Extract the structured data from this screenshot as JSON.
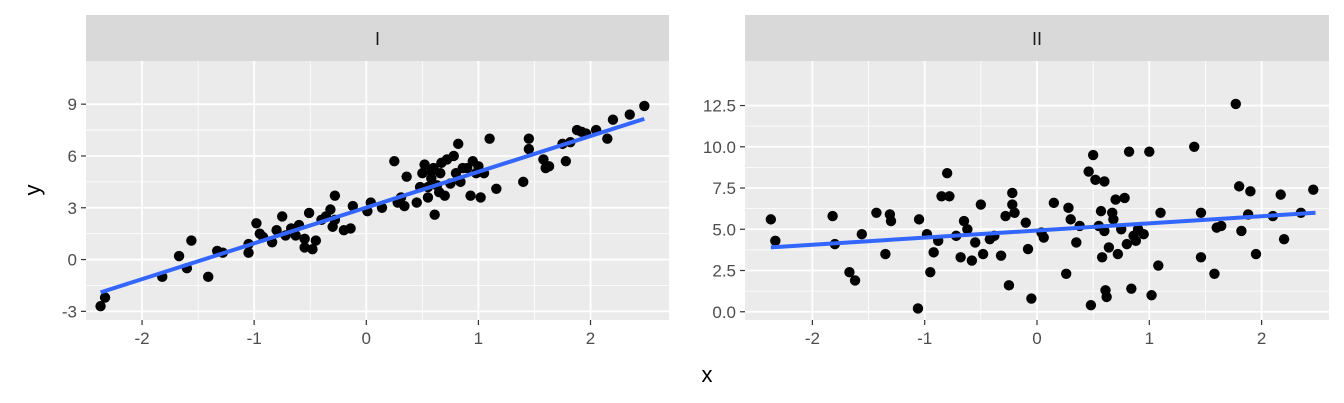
{
  "chart_data": {
    "type": "scatter",
    "xlabel": "x",
    "ylabel": "y",
    "colors": {
      "points": "#000000",
      "fit_line": "#3366ff",
      "panel_bg": "#ebebeb",
      "strip_bg": "#d9d9d9",
      "grid": "#ffffff"
    },
    "panels": [
      {
        "strip": "I",
        "xlim": [
          -2.5,
          2.7
        ],
        "ylim": [
          -3.5,
          11.5
        ],
        "x_ticks": [
          -2,
          -1,
          0,
          1,
          2
        ],
        "x_tick_labels": [
          "-2",
          "-1",
          "0",
          "1",
          "2"
        ],
        "y_ticks": [
          -3,
          0,
          3,
          6,
          9
        ],
        "y_tick_labels": [
          "-3",
          "0",
          "3",
          "6",
          "9"
        ],
        "fit": {
          "x": [
            -2.37,
            2.48
          ],
          "y": [
            -1.9,
            8.15
          ]
        },
        "points": [
          {
            "x": -2.37,
            "y": -2.7
          },
          {
            "x": -2.33,
            "y": -2.2
          },
          {
            "x": -1.82,
            "y": -1.0
          },
          {
            "x": -1.67,
            "y": 0.2
          },
          {
            "x": -1.6,
            "y": -0.5
          },
          {
            "x": -1.56,
            "y": 1.1
          },
          {
            "x": -1.41,
            "y": -1.0
          },
          {
            "x": -1.33,
            "y": 0.5
          },
          {
            "x": -1.28,
            "y": 0.4
          },
          {
            "x": -1.05,
            "y": 0.9
          },
          {
            "x": -1.05,
            "y": 0.4
          },
          {
            "x": -0.98,
            "y": 2.1
          },
          {
            "x": -0.95,
            "y": 1.5
          },
          {
            "x": -0.92,
            "y": 1.3
          },
          {
            "x": -0.84,
            "y": 1.0
          },
          {
            "x": -0.8,
            "y": 1.7
          },
          {
            "x": -0.75,
            "y": 2.5
          },
          {
            "x": -0.72,
            "y": 1.4
          },
          {
            "x": -0.67,
            "y": 1.8
          },
          {
            "x": -0.63,
            "y": 1.4
          },
          {
            "x": -0.6,
            "y": 2.0
          },
          {
            "x": -0.55,
            "y": 1.2
          },
          {
            "x": -0.55,
            "y": 0.7
          },
          {
            "x": -0.51,
            "y": 2.7
          },
          {
            "x": -0.48,
            "y": 0.6
          },
          {
            "x": -0.45,
            "y": 1.1
          },
          {
            "x": -0.4,
            "y": 2.3
          },
          {
            "x": -0.36,
            "y": 2.5
          },
          {
            "x": -0.32,
            "y": 2.9
          },
          {
            "x": -0.3,
            "y": 1.9
          },
          {
            "x": -0.28,
            "y": 2.3
          },
          {
            "x": -0.28,
            "y": 3.7
          },
          {
            "x": -0.2,
            "y": 1.7
          },
          {
            "x": -0.14,
            "y": 1.8
          },
          {
            "x": -0.12,
            "y": 3.1
          },
          {
            "x": 0.01,
            "y": 2.8
          },
          {
            "x": 0.04,
            "y": 3.3
          },
          {
            "x": 0.14,
            "y": 3.0
          },
          {
            "x": 0.25,
            "y": 5.7
          },
          {
            "x": 0.28,
            "y": 3.3
          },
          {
            "x": 0.31,
            "y": 3.6
          },
          {
            "x": 0.34,
            "y": 3.1
          },
          {
            "x": 0.36,
            "y": 4.8
          },
          {
            "x": 0.45,
            "y": 3.3
          },
          {
            "x": 0.48,
            "y": 4.2
          },
          {
            "x": 0.5,
            "y": 5.0
          },
          {
            "x": 0.52,
            "y": 5.5
          },
          {
            "x": 0.55,
            "y": 3.6
          },
          {
            "x": 0.55,
            "y": 4.2
          },
          {
            "x": 0.58,
            "y": 5.1
          },
          {
            "x": 0.58,
            "y": 4.7
          },
          {
            "x": 0.6,
            "y": 5.3
          },
          {
            "x": 0.61,
            "y": 2.6
          },
          {
            "x": 0.63,
            "y": 4.3
          },
          {
            "x": 0.65,
            "y": 3.9
          },
          {
            "x": 0.66,
            "y": 5.0
          },
          {
            "x": 0.67,
            "y": 5.6
          },
          {
            "x": 0.7,
            "y": 3.7
          },
          {
            "x": 0.72,
            "y": 5.8
          },
          {
            "x": 0.75,
            "y": 4.4
          },
          {
            "x": 0.78,
            "y": 6.0
          },
          {
            "x": 0.8,
            "y": 5.0
          },
          {
            "x": 0.82,
            "y": 6.7
          },
          {
            "x": 0.84,
            "y": 4.5
          },
          {
            "x": 0.86,
            "y": 5.3
          },
          {
            "x": 0.9,
            "y": 5.3
          },
          {
            "x": 0.93,
            "y": 3.7
          },
          {
            "x": 0.95,
            "y": 5.7
          },
          {
            "x": 0.98,
            "y": 5.0
          },
          {
            "x": 1.0,
            "y": 5.4
          },
          {
            "x": 1.02,
            "y": 3.6
          },
          {
            "x": 1.05,
            "y": 5.0
          },
          {
            "x": 1.1,
            "y": 7.0
          },
          {
            "x": 1.16,
            "y": 4.1
          },
          {
            "x": 1.4,
            "y": 4.5
          },
          {
            "x": 1.45,
            "y": 6.4
          },
          {
            "x": 1.45,
            "y": 7.0
          },
          {
            "x": 1.58,
            "y": 5.8
          },
          {
            "x": 1.6,
            "y": 5.3
          },
          {
            "x": 1.63,
            "y": 5.4
          },
          {
            "x": 1.75,
            "y": 6.7
          },
          {
            "x": 1.78,
            "y": 5.7
          },
          {
            "x": 1.82,
            "y": 6.8
          },
          {
            "x": 1.88,
            "y": 7.5
          },
          {
            "x": 1.92,
            "y": 7.4
          },
          {
            "x": 1.96,
            "y": 7.3
          },
          {
            "x": 2.05,
            "y": 7.5
          },
          {
            "x": 2.15,
            "y": 7.0
          },
          {
            "x": 2.2,
            "y": 8.1
          },
          {
            "x": 2.35,
            "y": 8.4
          },
          {
            "x": 2.48,
            "y": 8.9
          }
        ]
      },
      {
        "strip": "II",
        "xlim": [
          -2.6,
          2.6
        ],
        "ylim": [
          -0.5,
          15.2
        ],
        "x_ticks": [
          -2,
          -1,
          0,
          1,
          2
        ],
        "x_tick_labels": [
          "-2",
          "-1",
          "0",
          "1",
          "2"
        ],
        "y_ticks": [
          0,
          2.5,
          5,
          7.5,
          10,
          12.5
        ],
        "y_tick_labels": [
          "0.0",
          "2.5",
          "5.0",
          "7.5",
          "10.0",
          "12.5"
        ],
        "fit": {
          "x": [
            -2.37,
            2.48
          ],
          "y": [
            3.9,
            6.0
          ]
        },
        "points": [
          {
            "x": -2.37,
            "y": 5.6
          },
          {
            "x": -2.33,
            "y": 4.3
          },
          {
            "x": -1.82,
            "y": 5.8
          },
          {
            "x": -1.8,
            "y": 4.1
          },
          {
            "x": -1.67,
            "y": 2.4
          },
          {
            "x": -1.62,
            "y": 1.9
          },
          {
            "x": -1.56,
            "y": 4.7
          },
          {
            "x": -1.43,
            "y": 6.0
          },
          {
            "x": -1.35,
            "y": 3.5
          },
          {
            "x": -1.31,
            "y": 5.9
          },
          {
            "x": -1.3,
            "y": 5.5
          },
          {
            "x": -1.06,
            "y": 0.2
          },
          {
            "x": -1.05,
            "y": 5.6
          },
          {
            "x": -0.98,
            "y": 4.7
          },
          {
            "x": -0.95,
            "y": 2.4
          },
          {
            "x": -0.92,
            "y": 3.6
          },
          {
            "x": -0.88,
            "y": 4.3
          },
          {
            "x": -0.85,
            "y": 7.0
          },
          {
            "x": -0.8,
            "y": 8.4
          },
          {
            "x": -0.78,
            "y": 7.0
          },
          {
            "x": -0.72,
            "y": 4.6
          },
          {
            "x": -0.68,
            "y": 3.3
          },
          {
            "x": -0.65,
            "y": 5.5
          },
          {
            "x": -0.62,
            "y": 5.0
          },
          {
            "x": -0.58,
            "y": 3.1
          },
          {
            "x": -0.55,
            "y": 4.2
          },
          {
            "x": -0.5,
            "y": 6.5
          },
          {
            "x": -0.48,
            "y": 3.5
          },
          {
            "x": -0.42,
            "y": 4.4
          },
          {
            "x": -0.38,
            "y": 4.6
          },
          {
            "x": -0.32,
            "y": 3.4
          },
          {
            "x": -0.28,
            "y": 5.8
          },
          {
            "x": -0.25,
            "y": 1.6
          },
          {
            "x": -0.22,
            "y": 7.2
          },
          {
            "x": -0.22,
            "y": 6.5
          },
          {
            "x": -0.2,
            "y": 6.0
          },
          {
            "x": -0.1,
            "y": 5.4
          },
          {
            "x": -0.08,
            "y": 3.8
          },
          {
            "x": -0.05,
            "y": 0.8
          },
          {
            "x": 0.04,
            "y": 4.8
          },
          {
            "x": 0.06,
            "y": 4.5
          },
          {
            "x": 0.15,
            "y": 6.6
          },
          {
            "x": 0.26,
            "y": 2.3
          },
          {
            "x": 0.28,
            "y": 6.3
          },
          {
            "x": 0.3,
            "y": 5.6
          },
          {
            "x": 0.35,
            "y": 4.2
          },
          {
            "x": 0.38,
            "y": 5.2
          },
          {
            "x": 0.46,
            "y": 8.5
          },
          {
            "x": 0.48,
            "y": 0.4
          },
          {
            "x": 0.5,
            "y": 9.5
          },
          {
            "x": 0.52,
            "y": 8.0
          },
          {
            "x": 0.55,
            "y": 5.2
          },
          {
            "x": 0.57,
            "y": 6.1
          },
          {
            "x": 0.58,
            "y": 3.3
          },
          {
            "x": 0.6,
            "y": 4.9
          },
          {
            "x": 0.6,
            "y": 7.9
          },
          {
            "x": 0.61,
            "y": 1.3
          },
          {
            "x": 0.62,
            "y": 0.9
          },
          {
            "x": 0.64,
            "y": 3.9
          },
          {
            "x": 0.67,
            "y": 6.0
          },
          {
            "x": 0.68,
            "y": 5.6
          },
          {
            "x": 0.7,
            "y": 6.8
          },
          {
            "x": 0.72,
            "y": 3.5
          },
          {
            "x": 0.75,
            "y": 5.0
          },
          {
            "x": 0.78,
            "y": 6.9
          },
          {
            "x": 0.8,
            "y": 4.1
          },
          {
            "x": 0.82,
            "y": 9.7
          },
          {
            "x": 0.84,
            "y": 1.4
          },
          {
            "x": 0.86,
            "y": 4.6
          },
          {
            "x": 0.88,
            "y": 4.3
          },
          {
            "x": 0.9,
            "y": 5.0
          },
          {
            "x": 0.95,
            "y": 4.7
          },
          {
            "x": 1.0,
            "y": 9.7
          },
          {
            "x": 1.02,
            "y": 1.0
          },
          {
            "x": 1.08,
            "y": 2.8
          },
          {
            "x": 1.1,
            "y": 6.0
          },
          {
            "x": 1.4,
            "y": 10.0
          },
          {
            "x": 1.46,
            "y": 3.3
          },
          {
            "x": 1.46,
            "y": 6.0
          },
          {
            "x": 1.58,
            "y": 2.3
          },
          {
            "x": 1.6,
            "y": 5.1
          },
          {
            "x": 1.64,
            "y": 5.2
          },
          {
            "x": 1.77,
            "y": 12.6
          },
          {
            "x": 1.8,
            "y": 7.6
          },
          {
            "x": 1.82,
            "y": 4.9
          },
          {
            "x": 1.88,
            "y": 5.9
          },
          {
            "x": 1.9,
            "y": 7.3
          },
          {
            "x": 1.95,
            "y": 3.5
          },
          {
            "x": 2.1,
            "y": 5.8
          },
          {
            "x": 2.17,
            "y": 7.1
          },
          {
            "x": 2.2,
            "y": 4.4
          },
          {
            "x": 2.35,
            "y": 6.0
          },
          {
            "x": 2.46,
            "y": 7.4
          }
        ]
      }
    ]
  }
}
